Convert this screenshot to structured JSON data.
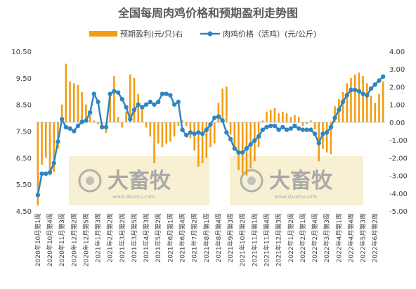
{
  "chart_data": {
    "type": "bar+line",
    "title": "全国每周肉鸡价格和预期盈利走势图",
    "legend": [
      "预期盈利(元/只)右",
      "肉鸡价格（活鸡）(元/公斤)"
    ],
    "legend_placement": "top",
    "colors": {
      "bar": "#f39c12",
      "line": "#2e86c1",
      "axis": "#bfbfbf",
      "text": "#404040"
    },
    "watermark": {
      "text": "大畜牧",
      "sub": "www.dxumu.com"
    },
    "y_left": {
      "min": 4.5,
      "max": 10.5,
      "ticks": [
        "4.50",
        "5.50",
        "6.50",
        "7.50",
        "8.50",
        "9.50",
        "10.50"
      ]
    },
    "y_right": {
      "min": -5.0,
      "max": 4.0,
      "ticks": [
        "-5.00",
        "-4.00",
        "-3.00",
        "-2.00",
        "-1.00",
        "0.00",
        "1.00",
        "2.00",
        "3.00",
        "4.00"
      ]
    },
    "x_tick_labels": [
      "2020年10月第1周",
      "2020年10月第4周",
      "2020年11月第3周",
      "2020年12月第2周",
      "2020年12月第5周",
      "2021年1月第3周",
      "2021年2月第2周",
      "2021年3月第2周",
      "2021年3月第5周",
      "2021年4月第3周",
      "2021年5月第2周",
      "2021年6月第1周",
      "2021年6月第4周",
      "2021年7月第2周",
      "2021年8月第1周",
      "2021年8月第4周",
      "2021年9月第3周",
      "2021年10月第2周",
      "2021年11月第1周",
      "2021年11月第4周",
      "2021年12月第3周",
      "2022年1月第2周",
      "2022年2月第1周",
      "2022年2月第4周",
      "2022年3月第3周",
      "2022年4月第1周",
      "2022年4月第4周",
      "2022年5月第3周",
      "2022年6月第2周"
    ],
    "series": [
      {
        "name": "肉鸡价格（活鸡）(元/公斤)",
        "axis": "left",
        "type": "line",
        "values": [
          5.1,
          5.9,
          5.9,
          5.95,
          6.3,
          7.1,
          7.95,
          7.65,
          7.6,
          7.5,
          7.7,
          7.85,
          7.9,
          8.2,
          8.9,
          8.6,
          7.65,
          7.65,
          8.9,
          9.0,
          8.95,
          8.7,
          8.4,
          7.95,
          8.3,
          8.5,
          8.4,
          8.5,
          8.6,
          8.5,
          8.6,
          8.9,
          8.9,
          8.85,
          8.5,
          8.6,
          7.55,
          7.35,
          7.45,
          7.4,
          7.45,
          7.4,
          7.55,
          7.75,
          8.0,
          8.05,
          7.9,
          7.45,
          7.2,
          6.85,
          6.7,
          6.7,
          6.85,
          7.0,
          7.15,
          7.3,
          7.55,
          7.65,
          7.7,
          7.7,
          7.55,
          7.65,
          7.55,
          7.6,
          7.7,
          7.6,
          7.55,
          7.55,
          7.55,
          7.4,
          7.05,
          7.4,
          7.45,
          7.65,
          8.0,
          8.3,
          8.6,
          8.85,
          9.05,
          9.05,
          9.0,
          8.9,
          8.85,
          9.1,
          9.25,
          9.4,
          9.55
        ]
      },
      {
        "name": "预期盈利(元/只)右",
        "axis": "right",
        "type": "bar",
        "values": [
          -4.7,
          -2.4,
          -2.0,
          -3.0,
          -2.8,
          -1.5,
          1.0,
          3.3,
          2.3,
          2.2,
          2.1,
          1.7,
          1.0,
          0.4,
          0.1,
          -0.1,
          -0.3,
          -0.6,
          1.5,
          2.6,
          0.3,
          -0.3,
          0.6,
          2.7,
          2.5,
          1.6,
          0.9,
          -0.3,
          -0.8,
          -2.3,
          -1.2,
          -1.4,
          -1.2,
          -1.1,
          -0.8,
          -0.2,
          0.1,
          -0.2,
          -0.9,
          -1.6,
          -2.5,
          -2.3,
          -2.0,
          -1.4,
          -1.2,
          1.1,
          1.9,
          2.0,
          -0.7,
          -1.6,
          -2.7,
          -2.9,
          -3.0,
          -2.6,
          -2.2,
          -1.4,
          0.1,
          0.6,
          0.7,
          0.8,
          0.5,
          0.6,
          0.5,
          0.3,
          0.4,
          0.3,
          -0.2,
          -0.1,
          0.1,
          -0.4,
          -2.2,
          -1.5,
          -1.7,
          -1.8,
          0.9,
          1.3,
          1.7,
          2.2,
          2.5,
          2.7,
          2.8,
          2.6,
          2.2,
          1.5,
          1.1,
          1.6,
          2.3
        ]
      }
    ]
  }
}
